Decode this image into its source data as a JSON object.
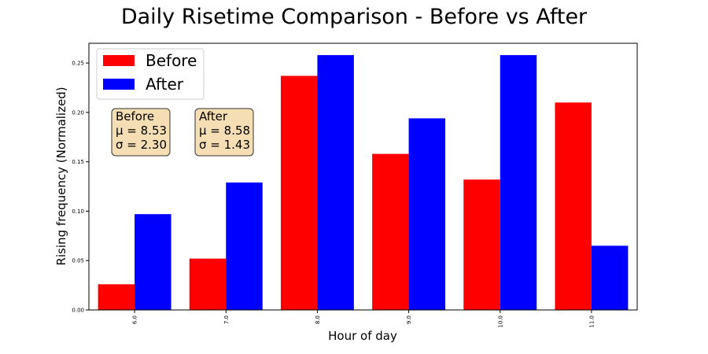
{
  "chart_data": {
    "type": "bar",
    "title": "Daily Risetime Comparison - Before vs After",
    "xlabel": "Hour of day",
    "ylabel": "Rising frequency (Normalized)",
    "categories": [
      "6.0",
      "7.0",
      "8.0",
      "9.0",
      "10.0",
      "11.0"
    ],
    "ylim": [
      0,
      0.27
    ],
    "yticks": [
      "0.00",
      "0.05",
      "0.10",
      "0.15",
      "0.20",
      "0.25"
    ],
    "series": [
      {
        "name": "Before",
        "color": "#ff0000",
        "values": [
          0.026,
          0.052,
          0.237,
          0.158,
          0.132,
          0.21
        ]
      },
      {
        "name": "After",
        "color": "#0000ff",
        "values": [
          0.097,
          0.129,
          0.258,
          0.194,
          0.258,
          0.065
        ]
      }
    ],
    "legend": "top-left",
    "grid": false,
    "annotations": [
      {
        "series": "Before",
        "lines": [
          "Before",
          "μ = 8.53",
          "σ = 2.30"
        ]
      },
      {
        "series": "After",
        "lines": [
          "After",
          "μ = 8.58",
          "σ = 1.43"
        ]
      }
    ]
  }
}
